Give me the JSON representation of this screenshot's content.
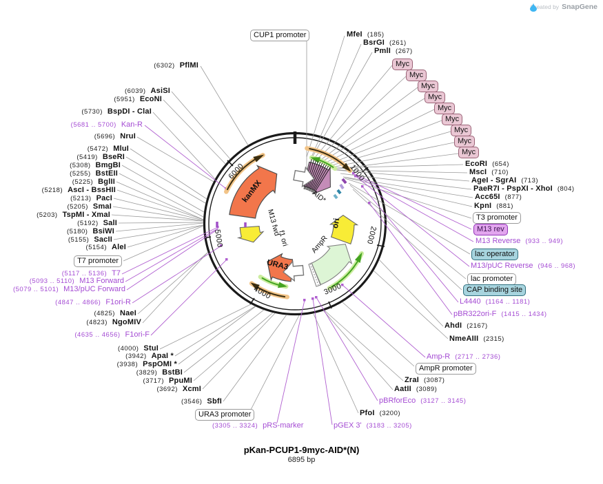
{
  "watermark": {
    "prefix": "Created by",
    "brand": "SnapGene"
  },
  "plasmid": {
    "name": "pKan-PCUP1-9myc-AID*(N)",
    "length": "6895 bp"
  },
  "ring_ticks": [
    "1000",
    "2000",
    "3000",
    "4000",
    "5000",
    "6000"
  ],
  "features": {
    "kanmx": "kanMX",
    "aid": "AID*",
    "ori": "ori",
    "ampr": "AmpR",
    "ura3": "URA3",
    "m13_fwd": "M13 fwd",
    "f1_ori": "f1 ori"
  },
  "boxes": {
    "cup1_promoter": "CUP1 promoter",
    "t7_promoter": "T7 promoter",
    "t3_promoter": "T3 promoter",
    "m13_rev": "M13 rev",
    "lac_operator": "lac operator",
    "lac_promoter": "lac promoter",
    "cap_binding_site": "CAP binding site",
    "ampr_promoter": "AmpR promoter",
    "ura3_promoter": "URA3 promoter",
    "myc": "Myc"
  },
  "annotations": [
    {
      "name": "MfeI",
      "pos": "(185)"
    },
    {
      "name": "BsrGI",
      "pos": "(261)"
    },
    {
      "name": "PmlI",
      "pos": "(267)"
    },
    {
      "name": "EcoRI",
      "pos": "(654)"
    },
    {
      "name": "MscI",
      "pos": "(710)"
    },
    {
      "name": "AgeI - SgrAI",
      "pos": "(713)"
    },
    {
      "name": "PaeR7I - PspXI - XhoI",
      "pos": "(804)"
    },
    {
      "name": "Acc65I",
      "pos": "(877)"
    },
    {
      "name": "KpnI",
      "pos": "(881)"
    },
    {
      "name": "M13 Reverse",
      "pos": "(933 .. 949)"
    },
    {
      "name": "M13/pUC Reverse",
      "pos": "(946 .. 968)"
    },
    {
      "name": "L4440",
      "pos": "(1164 .. 1181)"
    },
    {
      "name": "pBR322ori-F",
      "pos": "(1415 .. 1434)"
    },
    {
      "name": "AhdI",
      "pos": "(2167)"
    },
    {
      "name": "NmeAIII",
      "pos": "(2315)"
    },
    {
      "name": "Amp-R",
      "pos": "(2717 .. 2736)"
    },
    {
      "name": "ZraI",
      "pos": "(3087)"
    },
    {
      "name": "AatII",
      "pos": "(3089)"
    },
    {
      "name": "pBRforEco",
      "pos": "(3127 .. 3145)"
    },
    {
      "name": "PfoI",
      "pos": "(3200)"
    },
    {
      "name": "pGEX 3'",
      "pos": "(3183 .. 3205)"
    },
    {
      "name": "pRS-marker",
      "pos": "(3305 .. 3324)"
    },
    {
      "name": "SbfI",
      "pos": "(3546)"
    },
    {
      "name": "XcmI",
      "pos": "(3692)"
    },
    {
      "name": "PpuMI",
      "pos": "(3717)"
    },
    {
      "name": "BstBI",
      "pos": "(3829)"
    },
    {
      "name": "PspOMI *",
      "pos": "(3938)"
    },
    {
      "name": "ApaI *",
      "pos": "(3942)"
    },
    {
      "name": "StuI",
      "pos": "(4000)"
    },
    {
      "name": "F1ori-F",
      "pos": "(4635 .. 4656)"
    },
    {
      "name": "NgoMIV",
      "pos": "(4823)"
    },
    {
      "name": "NaeI",
      "pos": "(4825)"
    },
    {
      "name": "F1ori-R",
      "pos": "(4847 .. 4866)"
    },
    {
      "name": "M13/pUC Forward",
      "pos": "(5079 .. 5101)"
    },
    {
      "name": "M13 Forward",
      "pos": "(5093 .. 5110)"
    },
    {
      "name": "T7",
      "pos": "(5117 .. 5136)"
    },
    {
      "name": "AleI",
      "pos": "(5154)"
    },
    {
      "name": "SacII",
      "pos": "(5155)"
    },
    {
      "name": "BsiWI",
      "pos": "(5180)"
    },
    {
      "name": "SalI",
      "pos": "(5192)"
    },
    {
      "name": "TspMI - XmaI",
      "pos": "(5203)"
    },
    {
      "name": "SmaI",
      "pos": "(5205)"
    },
    {
      "name": "PacI",
      "pos": "(5213)"
    },
    {
      "name": "AscI - BssHII",
      "pos": "(5218)"
    },
    {
      "name": "BglII",
      "pos": "(5225)"
    },
    {
      "name": "BstEII",
      "pos": "(5255)"
    },
    {
      "name": "BmgBI",
      "pos": "(5308)"
    },
    {
      "name": "BseRI",
      "pos": "(5419)"
    },
    {
      "name": "MluI",
      "pos": "(5472)"
    },
    {
      "name": "NruI",
      "pos": "(5696)"
    },
    {
      "name": "Kan-R",
      "pos": "(5681 .. 5700)"
    },
    {
      "name": "BspDI - ClaI",
      "pos": "(5730)"
    },
    {
      "name": "EcoNI",
      "pos": "(5951)"
    },
    {
      "name": "AsiSI",
      "pos": "(6039)"
    },
    {
      "name": "PflMI",
      "pos": "(6302)"
    }
  ],
  "colors": {
    "primer_text": "#A44BD3",
    "leader_gray": "#999999",
    "leader_purple": "#B05FD0",
    "coral": "#F2764B",
    "yellow": "#F8EC36",
    "pale_green": "#DDF5D5",
    "plum": "#C48CB8",
    "band_orange": "#F2C488",
    "band_orange_arrow": "#3A2D10",
    "band_green": "#CCEDA0",
    "band_green_arrow": "#44A321",
    "myc_box": "#EAC7D4",
    "violet_box": "#E2A5EE",
    "teal_box": "#A7D4DE"
  }
}
